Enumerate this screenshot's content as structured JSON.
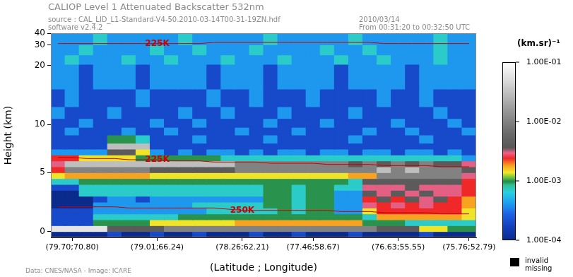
{
  "chart_data": {
    "type": "heatmap",
    "title": "CALIOP Level 1 Attenuated Backscatter 532nm",
    "subtitle": [
      "source : CAL_LID_L1-Standard-V4-50.2010-03-14T00-31-19ZN.hdf",
      "software v2.4.2"
    ],
    "date_lines": [
      "2010/03/14",
      "From 00:31:20 to 00:32:50 UTC"
    ],
    "credit": "Data: CNES/NASA - Image: ICARE",
    "x_label": "(Latitude ; Longitude)",
    "y_label": "Height (km)",
    "categories": [
      null,
      "(79.70;70.80)",
      null,
      null,
      null,
      null,
      null,
      "(79.01;66.24)",
      null,
      null,
      null,
      null,
      null,
      "(78.26;62.21)",
      null,
      null,
      null,
      null,
      "(77.46;58.67)",
      null,
      null,
      null,
      null,
      null,
      "(76.63;55.55)",
      null,
      null,
      null,
      null,
      "(75.76;52.79)"
    ],
    "y_bins": [
      -0.5,
      0,
      0.5,
      1,
      1.5,
      2,
      2.5,
      3,
      3.5,
      4,
      4.5,
      5,
      5.5,
      6,
      6.5,
      7,
      7.5,
      8.2,
      9.5,
      11,
      13,
      16,
      20.2,
      25,
      30.1,
      40
    ],
    "ylim": [
      -0.5,
      40
    ],
    "yticks": [
      0,
      5,
      10,
      20,
      30,
      40
    ],
    "grid": false,
    "cells": [
      [
        0.0001,
        0.0001,
        0.0001,
        0.0001,
        0.0002,
        0.0001,
        0.0001,
        0.0002,
        0.0001,
        0.0001,
        0.0002,
        0.0001,
        0.0001,
        0.0001,
        0.0002,
        0.0001,
        0.0001,
        0.0002,
        0.0001,
        0.0001,
        0.0001,
        0.0002,
        0.0001,
        0.0001,
        0.0001,
        0.0001,
        0.0002,
        0.0001,
        0.0001,
        0.0001
      ],
      [
        0.06,
        0.06,
        0.06,
        0.06,
        0.004,
        0.004,
        0.004,
        0.004,
        0.01,
        0.01,
        0.01,
        0.01,
        0.01,
        0.01,
        0.01,
        0.01,
        0.01,
        0.01,
        0.01,
        0.01,
        0.01,
        0.01,
        0.01,
        0.004,
        0.004,
        0.004,
        0.0014,
        0.0014,
        0.001,
        0.001
      ],
      [
        0.0002,
        0.0002,
        0.0002,
        0.001,
        0.001,
        0.001,
        0.001,
        0.0014,
        0.0014,
        0.0014,
        0.0014,
        0.0014,
        0.0014,
        0.0018,
        0.0018,
        0.0018,
        0.0018,
        0.0018,
        0.0018,
        0.0018,
        0.0018,
        0.0018,
        0.001,
        0.001,
        0.001,
        0.0007,
        0.0007,
        0.0007,
        0.0007,
        0.0007
      ],
      [
        0.0002,
        0.0002,
        0.0002,
        0.0007,
        0.0007,
        0.0007,
        0.0007,
        0.0007,
        0.0007,
        0.001,
        0.001,
        0.001,
        0.001,
        0.001,
        0.001,
        0.001,
        0.001,
        0.001,
        0.001,
        0.001,
        0.001,
        0.001,
        0.0007,
        0.0018,
        0.0018,
        0.0018,
        0.0018,
        0.0018,
        0.0018,
        0.0014
      ],
      [
        0.0002,
        0.0002,
        0.0002,
        0.0004,
        0.0004,
        0.0004,
        0.0004,
        0.0004,
        0.0004,
        0.0004,
        0.0004,
        0.0007,
        0.0007,
        0.0007,
        0.0007,
        0.0007,
        0.001,
        0.0007,
        0.001,
        0.001,
        0.0004,
        0.0004,
        0.0014,
        0.0024,
        0.0024,
        0.0024,
        0.0024,
        0.0024,
        0.0024,
        0.0014
      ],
      [
        0.0001,
        0.0001,
        0.0001,
        0.0004,
        0.0004,
        0.0004,
        0.0004,
        0.0004,
        0.0004,
        0.0004,
        0.0007,
        0.0007,
        0.0007,
        0.0007,
        0.0007,
        0.001,
        0.001,
        0.0007,
        0.001,
        0.001,
        0.0004,
        0.0004,
        0.003,
        0.0024,
        0.003,
        0.0024,
        0.003,
        0.0024,
        0.0024,
        0.0018
      ],
      [
        0.0001,
        0.0001,
        0.0001,
        0.0002,
        0.0004,
        0.0004,
        0.0002,
        0.0004,
        0.0004,
        0.0004,
        0.0004,
        0.0004,
        0.0004,
        0.0004,
        0.0004,
        0.001,
        0.001,
        0.0007,
        0.001,
        0.001,
        0.0004,
        0.0004,
        0.0024,
        0.004,
        0.0024,
        0.004,
        0.003,
        0.004,
        0.0024,
        0.0018
      ],
      [
        0.0001,
        0.0001,
        0.0007,
        0.0007,
        0.0007,
        0.0007,
        0.0007,
        0.0007,
        0.0007,
        0.0007,
        0.0007,
        0.0007,
        0.0007,
        0.0007,
        0.0007,
        0.001,
        0.001,
        0.0007,
        0.001,
        0.001,
        0.0004,
        0.0004,
        0.004,
        0.003,
        0.004,
        0.003,
        0.004,
        0.003,
        0.003,
        0.0024
      ],
      [
        0.0002,
        0.0002,
        0.0007,
        0.0007,
        0.0007,
        0.0007,
        0.0007,
        0.0007,
        0.0007,
        0.0007,
        0.0007,
        0.0007,
        0.0007,
        0.0007,
        0.0007,
        0.001,
        0.001,
        0.0007,
        0.001,
        0.001,
        0.0007,
        0.0007,
        0.003,
        0.003,
        0.003,
        0.004,
        0.003,
        0.003,
        0.003,
        0.0024
      ],
      [
        0.0007,
        0.0007,
        0.001,
        0.001,
        0.001,
        0.001,
        0.001,
        0.001,
        0.001,
        0.001,
        0.001,
        0.001,
        0.001,
        0.001,
        0.001,
        0.001,
        0.001,
        0.001,
        0.001,
        0.001,
        0.001,
        0.0007,
        0.004,
        0.004,
        0.004,
        0.004,
        0.004,
        0.004,
        0.004,
        0.0024
      ],
      [
        0.0014,
        0.0018,
        0.0018,
        0.0018,
        0.0018,
        0.0018,
        0.0018,
        0.0014,
        0.0014,
        0.0014,
        0.0014,
        0.0014,
        0.0014,
        0.0014,
        0.0014,
        0.0014,
        0.0014,
        0.0014,
        0.0014,
        0.0014,
        0.0014,
        0.0018,
        0.0018,
        0.01,
        0.01,
        0.01,
        0.01,
        0.01,
        0.01,
        0.003
      ],
      [
        0.0024,
        0.01,
        0.01,
        0.01,
        0.01,
        0.01,
        0.01,
        0.004,
        0.004,
        0.004,
        0.004,
        0.004,
        0.004,
        0.01,
        0.01,
        0.01,
        0.01,
        0.01,
        0.01,
        0.01,
        0.01,
        0.01,
        0.01,
        0.03,
        0.01,
        0.03,
        0.01,
        0.01,
        0.01,
        0.004
      ],
      [
        0.003,
        0.03,
        0.03,
        0.03,
        0.03,
        0.03,
        0.03,
        0.03,
        0.03,
        0.03,
        0.03,
        0.03,
        0.03,
        0.01,
        0.01,
        0.01,
        0.01,
        0.01,
        0.01,
        0.01,
        0.01,
        0.004,
        0.01,
        0.004,
        0.01,
        0.004,
        0.01,
        0.004,
        0.004,
        0.003
      ],
      [
        0.0024,
        0.0024,
        0.0014,
        0.0014,
        0.0014,
        0.0014,
        0.001,
        0.001,
        0.001,
        0.001,
        0.001,
        0.001,
        0.0007,
        0.0007,
        0.0007,
        0.0007,
        0.0007,
        0.0007,
        0.0007,
        0.0007,
        0.0007,
        0.0007,
        0.0007,
        0.0007,
        0.0007,
        0.0007,
        0.0007,
        0.0007,
        0.0007,
        0.0004
      ],
      [
        0.0004,
        0.0004,
        0.0004,
        0.0004,
        0.004,
        0.004,
        0.0014,
        0.0004,
        0.0002,
        0.0004,
        0.0002,
        0.0004,
        0.0004,
        0.0002,
        0.0004,
        0.0002,
        0.0004,
        0.0004,
        0.0002,
        0.0004,
        0.0004,
        0.0002,
        0.0004,
        0.0004,
        0.0002,
        0.0004,
        0.0004,
        0.0002,
        0.0004,
        0.0002
      ],
      [
        0.0002,
        0.0002,
        0.0002,
        0.0002,
        0.03,
        0.03,
        0.03,
        0.0002,
        0.0002,
        0.0002,
        0.0002,
        0.0002,
        0.0002,
        0.0002,
        0.0002,
        0.0002,
        0.0002,
        0.0002,
        0.0002,
        0.0002,
        0.0002,
        0.0002,
        0.0002,
        0.0002,
        0.0002,
        0.0002,
        0.0002,
        0.0002,
        0.0002,
        0.0002
      ],
      [
        0.0002,
        0.0002,
        0.0002,
        0.0002,
        0.001,
        0.001,
        0.0007,
        0.0002,
        0.0002,
        0.0002,
        0.0004,
        0.0002,
        0.0002,
        0.0002,
        0.0002,
        0.0004,
        0.0002,
        0.0002,
        0.0002,
        0.0002,
        0.0002,
        0.0004,
        0.0002,
        0.0002,
        0.0002,
        0.0002,
        0.0004,
        0.0002,
        0.0002,
        0.0002
      ],
      [
        0.0002,
        0.0004,
        0.0002,
        0.0002,
        0.0002,
        0.0004,
        0.0002,
        0.0002,
        0.0004,
        0.0002,
        0.0002,
        0.0002,
        0.0002,
        0.0004,
        0.0002,
        0.0002,
        0.0002,
        0.0004,
        0.0002,
        0.0002,
        0.0002,
        0.0002,
        0.0004,
        0.0002,
        0.0002,
        0.0004,
        0.0002,
        0.0002,
        0.0002,
        0.0004
      ],
      [
        0.0002,
        0.0002,
        0.0004,
        0.0002,
        0.0002,
        0.0002,
        0.0002,
        0.0004,
        0.0002,
        0.0002,
        0.0004,
        0.0002,
        0.0002,
        0.0002,
        0.0002,
        0.0004,
        0.0002,
        0.0002,
        0.0002,
        0.0004,
        0.0002,
        0.0002,
        0.0002,
        0.0002,
        0.0004,
        0.0002,
        0.0002,
        0.0002,
        0.0004,
        0.0002
      ],
      [
        0.0004,
        0.0002,
        0.0002,
        0.0002,
        0.0004,
        0.0002,
        0.0002,
        0.0002,
        0.0002,
        0.0004,
        0.0002,
        0.0002,
        0.0004,
        0.0002,
        0.0002,
        0.0002,
        0.0004,
        0.0002,
        0.0002,
        0.0002,
        0.0002,
        0.0004,
        0.0002,
        0.0002,
        0.0002,
        0.0002,
        0.0002,
        0.0004,
        0.0002,
        0.0002
      ],
      [
        0.0002,
        0.0004,
        0.0002,
        0.0002,
        0.0002,
        0.0002,
        0.0004,
        0.0002,
        0.0002,
        0.0002,
        0.0002,
        0.0004,
        0.0002,
        0.0002,
        0.0004,
        0.0002,
        0.0002,
        0.0002,
        0.0004,
        0.0002,
        0.0002,
        0.0002,
        0.0002,
        0.0004,
        0.0002,
        0.0002,
        0.0004,
        0.0002,
        0.0002,
        0.0002
      ],
      [
        0.0004,
        0.0004,
        0.0002,
        0.0004,
        0.0004,
        0.0004,
        0.0002,
        0.0004,
        0.0004,
        0.0004,
        0.0004,
        0.0002,
        0.0004,
        0.0004,
        0.0004,
        0.0002,
        0.0004,
        0.0004,
        0.0004,
        0.0004,
        0.0002,
        0.0004,
        0.0004,
        0.0004,
        0.0004,
        0.0002,
        0.0004,
        0.0004,
        0.0004,
        0.0004
      ],
      [
        0.0004,
        0.0007,
        0.0004,
        0.0004,
        0.0004,
        0.0007,
        0.0004,
        0.0004,
        0.0007,
        0.0004,
        0.0004,
        0.0004,
        0.0007,
        0.0004,
        0.0004,
        0.0004,
        0.0007,
        0.0004,
        0.0004,
        0.0004,
        0.0007,
        0.0004,
        0.0004,
        0.0007,
        0.0004,
        0.0004,
        0.0004,
        0.0007,
        0.0004,
        0.0004
      ],
      [
        0.0004,
        0.0004,
        0.0007,
        0.0004,
        0.0004,
        0.0004,
        0.0004,
        0.0007,
        0.0004,
        0.0004,
        0.0007,
        0.0004,
        0.0004,
        0.0004,
        0.0007,
        0.0004,
        0.0004,
        0.0004,
        0.0004,
        0.0007,
        0.0004,
        0.0004,
        0.0007,
        0.0004,
        0.0004,
        0.0004,
        0.0004,
        0.0007,
        0.0004,
        0.0004
      ],
      [
        0.0004,
        0.0004,
        0.0004,
        0.0007,
        0.0004,
        0.0004,
        0.0004,
        0.0004,
        0.0004,
        0.0007,
        0.0004,
        0.0004,
        0.0004,
        0.0004,
        0.0004,
        0.0007,
        0.0004,
        0.0004,
        0.0004,
        0.0004,
        0.0004,
        0.0007,
        0.0004,
        0.0004,
        0.0004,
        0.0004,
        0.0004,
        0.0007,
        0.0004,
        0.0004
      ]
    ],
    "colorbar": {
      "label": "(km.sr)⁻¹",
      "range": [
        0.0001,
        0.1
      ],
      "log": true,
      "ticks": [
        {
          "value": 0.0001,
          "label": "1.00E-04"
        },
        {
          "value": 0.001,
          "label": "1.00E-03"
        },
        {
          "value": 0.01,
          "label": "1.00E-02"
        },
        {
          "value": 0.1,
          "label": "1.00E-01"
        }
      ]
    },
    "missing": {
      "labels": [
        "invalid",
        "missing"
      ],
      "color": "#000000"
    },
    "series": [
      {
        "name": "225K",
        "type": "line",
        "color": "#cc0000",
        "values": [
          31.2,
          31.2,
          31.2,
          31.2,
          31.2,
          31.2,
          31.2,
          31.2,
          31.2,
          31.2,
          31.2,
          32.2,
          32.2,
          32.2,
          32.2,
          32.2,
          32.2,
          32.2,
          32.2,
          32.2,
          32.2,
          32.2,
          32.2,
          31.2,
          31.2,
          31.2,
          31.2,
          31.2,
          31.2,
          31.2
        ]
      },
      {
        "name": "225K",
        "type": "line",
        "color": "#cc0000",
        "values": [
          6.3,
          6.3,
          6.2,
          6.2,
          6.2,
          6.1,
          6.1,
          6.1,
          6.0,
          6.0,
          6.0,
          5.9,
          5.9,
          5.9,
          5.9,
          5.8,
          5.8,
          5.8,
          5.8,
          5.7,
          5.7,
          5.7,
          5.7,
          5.6,
          5.6,
          5.6,
          5.6,
          5.5,
          5.5,
          5.5
        ]
      },
      {
        "name": "250K",
        "type": "line",
        "color": "#cc0000",
        "values": [
          2.1,
          2.1,
          2.1,
          2.1,
          2.1,
          2.0,
          2.0,
          2.0,
          2.0,
          2.0,
          2.0,
          2.0,
          1.9,
          1.8,
          1.8,
          1.8,
          1.8,
          1.8,
          1.8,
          1.8,
          1.7,
          1.7,
          1.7,
          1.6,
          1.6,
          1.6,
          1.6,
          1.5,
          1.5,
          1.5
        ]
      }
    ]
  }
}
